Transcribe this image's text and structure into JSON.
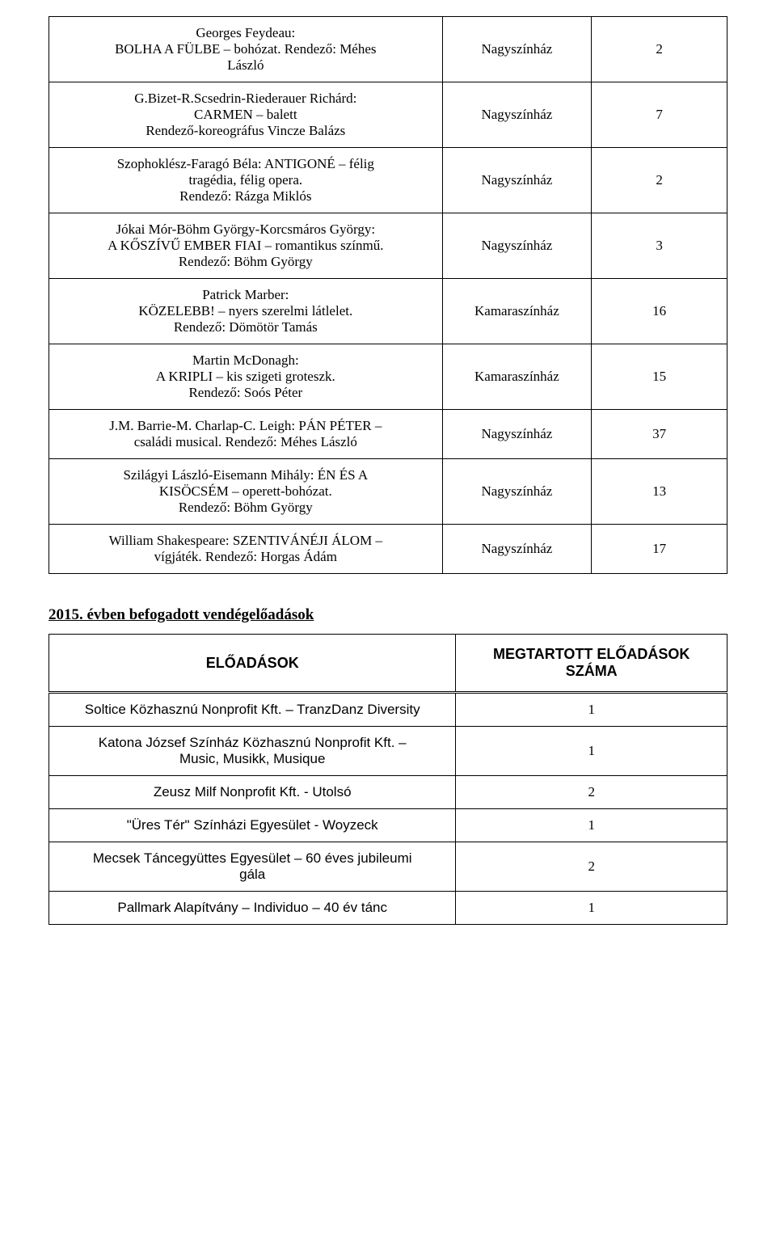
{
  "table1": {
    "rows": [
      {
        "c1": "Georges Feydeau:\nBOLHA A FÜLBE – bohózat. Rendező: Méhes\nLászló",
        "c2": "Nagyszínház",
        "c3": "2"
      },
      {
        "c1": "G.Bizet-R.Scsedrin-Riederauer Richárd:\nCARMEN – balett\nRendező-koreográfus Vincze Balázs",
        "c2": "Nagyszínház",
        "c3": "7"
      },
      {
        "c1": "Szophoklész-Faragó Béla: ANTIGONÉ – félig\ntragédia, félig opera.\nRendező: Rázga Miklós",
        "c2": "Nagyszínház",
        "c3": "2"
      },
      {
        "c1": "Jókai Mór-Böhm György-Korcsmáros György:\nA KŐSZÍVŰ EMBER FIAI – romantikus színmű.\nRendező: Böhm György",
        "c2": "Nagyszínház",
        "c3": "3"
      },
      {
        "c1": "Patrick Marber:\nKÖZELEBB! – nyers szerelmi látlelet.\nRendező: Dömötör Tamás",
        "c2": "Kamaraszínház",
        "c3": "16"
      },
      {
        "c1": "Martin McDonagh:\nA KRIPLI – kis szigeti groteszk.\nRendező: Soós Péter",
        "c2": "Kamaraszínház",
        "c3": "15"
      },
      {
        "c1": "J.M. Barrie-M. Charlap-C. Leigh: PÁN PÉTER –\ncsaládi musical. Rendező: Méhes László",
        "c2": "Nagyszínház",
        "c3": "37"
      },
      {
        "c1": "Szilágyi László-Eisemann Mihály: ÉN ÉS A\nKISÖCSÉM – operett-bohózat.\nRendező: Böhm György",
        "c2": "Nagyszínház",
        "c3": "13"
      },
      {
        "c1": "William Shakespeare: SZENTIVÁNÉJI ÁLOM –\nvígjáték. Rendező: Horgas Ádám",
        "c2": "Nagyszínház",
        "c3": "17"
      }
    ]
  },
  "section_title": "2015. évben befogadott vendégelőadások",
  "table2": {
    "header": {
      "c1": "ELŐADÁSOK",
      "c2": "MEGTARTOTT ELŐADÁSOK\nSZÁMA"
    },
    "rows": [
      {
        "c1": "Soltice Közhasznú Nonprofit Kft. – TranzDanz Diversity",
        "c2": "1",
        "arial": true
      },
      {
        "c1": "Katona József Színház Közhasznú Nonprofit Kft. –\nMusic, Musikk, Musique",
        "c2": "1",
        "arial": true
      },
      {
        "c1": "Zeusz  Milf Nonprofit Kft. - Utolsó",
        "c2": "2",
        "arial": true
      },
      {
        "c1": "\"Üres Tér\" Színházi Egyesület - Woyzeck",
        "c2": "1",
        "arial": true
      },
      {
        "c1": "Mecsek Táncegyüttes Egyesület – 60 éves jubileumi\ngála",
        "c2": "2",
        "arial": true
      },
      {
        "c1": "Pallmark Alapítvány – Individuo – 40 év tánc",
        "c2": "1",
        "arial": true
      }
    ]
  }
}
